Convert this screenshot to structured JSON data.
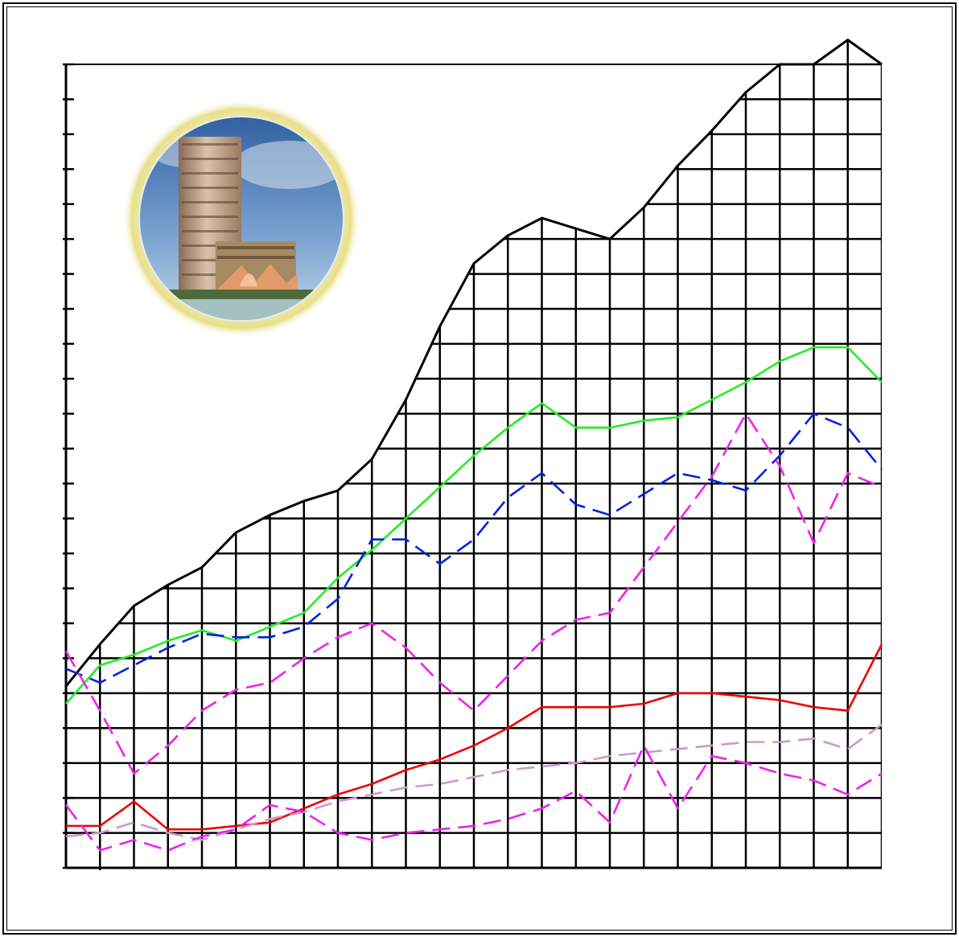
{
  "chart_data": {
    "type": "line",
    "title": "",
    "xlabel": "",
    "ylabel": "",
    "grid": true,
    "legend": "none",
    "x_range": [
      0,
      24
    ],
    "y_range": [
      0,
      23
    ],
    "decoration": "building-photo-medallion",
    "series": [
      {
        "color": "#000000",
        "style": "solid",
        "fill": "grid-hatched-area",
        "points": [
          [
            0,
            5.2
          ],
          [
            1,
            6.4
          ],
          [
            2,
            7.5
          ],
          [
            3,
            8.1
          ],
          [
            4,
            8.6
          ],
          [
            5,
            9.6
          ],
          [
            6,
            10.1
          ],
          [
            7,
            10.5
          ],
          [
            8,
            10.8
          ],
          [
            9,
            11.7
          ],
          [
            10,
            13.4
          ],
          [
            11,
            15.5
          ],
          [
            12,
            17.3
          ],
          [
            13,
            18.1
          ],
          [
            14,
            18.6
          ],
          [
            15,
            18.3
          ],
          [
            16,
            18.0
          ],
          [
            17,
            18.9
          ],
          [
            18,
            20.1
          ],
          [
            19,
            21.1
          ],
          [
            20,
            22.2
          ],
          [
            21,
            23.0
          ],
          [
            22,
            23.0
          ],
          [
            23,
            23.7
          ],
          [
            24,
            23.0
          ]
        ]
      },
      {
        "color": "#22ee22",
        "style": "solid",
        "points": [
          [
            0,
            4.7
          ],
          [
            1,
            5.8
          ],
          [
            2,
            6.1
          ],
          [
            3,
            6.5
          ],
          [
            4,
            6.8
          ],
          [
            5,
            6.5
          ],
          [
            6,
            6.9
          ],
          [
            7,
            7.3
          ],
          [
            8,
            8.3
          ],
          [
            9,
            9.1
          ],
          [
            10,
            10.0
          ],
          [
            11,
            10.9
          ],
          [
            12,
            11.8
          ],
          [
            13,
            12.6
          ],
          [
            14,
            13.3
          ],
          [
            15,
            12.6
          ],
          [
            16,
            12.6
          ],
          [
            17,
            12.8
          ],
          [
            18,
            12.9
          ],
          [
            19,
            13.4
          ],
          [
            20,
            13.9
          ],
          [
            21,
            14.5
          ],
          [
            22,
            14.9
          ],
          [
            23,
            14.9
          ],
          [
            24,
            13.9
          ]
        ]
      },
      {
        "color": "#0022dd",
        "style": "dashed",
        "points": [
          [
            0,
            5.7
          ],
          [
            1,
            5.3
          ],
          [
            2,
            5.8
          ],
          [
            3,
            6.3
          ],
          [
            4,
            6.7
          ],
          [
            5,
            6.6
          ],
          [
            6,
            6.6
          ],
          [
            7,
            6.9
          ],
          [
            8,
            7.7
          ],
          [
            9,
            9.4
          ],
          [
            10,
            9.4
          ],
          [
            11,
            8.7
          ],
          [
            12,
            9.4
          ],
          [
            13,
            10.6
          ],
          [
            14,
            11.3
          ],
          [
            15,
            10.4
          ],
          [
            16,
            10.1
          ],
          [
            17,
            10.7
          ],
          [
            18,
            11.3
          ],
          [
            19,
            11.1
          ],
          [
            20,
            10.8
          ],
          [
            21,
            11.8
          ],
          [
            22,
            13.0
          ],
          [
            23,
            12.6
          ],
          [
            24,
            11.4
          ]
        ]
      },
      {
        "color": "#ee22ee",
        "style": "dashed",
        "points": [
          [
            0,
            6.2
          ],
          [
            1,
            4.5
          ],
          [
            2,
            2.7
          ],
          [
            3,
            3.5
          ],
          [
            4,
            4.5
          ],
          [
            5,
            5.1
          ],
          [
            6,
            5.3
          ],
          [
            7,
            6.0
          ],
          [
            8,
            6.6
          ],
          [
            9,
            7.0
          ],
          [
            10,
            6.3
          ],
          [
            11,
            5.3
          ],
          [
            12,
            4.5
          ],
          [
            13,
            5.5
          ],
          [
            14,
            6.5
          ],
          [
            15,
            7.1
          ],
          [
            16,
            7.3
          ],
          [
            17,
            8.6
          ],
          [
            18,
            9.9
          ],
          [
            19,
            11.2
          ],
          [
            20,
            13.0
          ],
          [
            21,
            11.5
          ],
          [
            22,
            9.3
          ],
          [
            23,
            11.3
          ],
          [
            24,
            10.9
          ]
        ]
      },
      {
        "color": "#ee0000",
        "style": "solid",
        "points": [
          [
            0,
            1.2
          ],
          [
            1,
            1.2
          ],
          [
            2,
            1.9
          ],
          [
            3,
            1.1
          ],
          [
            4,
            1.1
          ],
          [
            5,
            1.2
          ],
          [
            6,
            1.3
          ],
          [
            7,
            1.7
          ],
          [
            8,
            2.1
          ],
          [
            9,
            2.4
          ],
          [
            10,
            2.8
          ],
          [
            11,
            3.1
          ],
          [
            12,
            3.5
          ],
          [
            13,
            4.0
          ],
          [
            14,
            4.6
          ],
          [
            15,
            4.6
          ],
          [
            16,
            4.6
          ],
          [
            17,
            4.7
          ],
          [
            18,
            5.0
          ],
          [
            19,
            5.0
          ],
          [
            20,
            4.9
          ],
          [
            21,
            4.8
          ],
          [
            22,
            4.6
          ],
          [
            23,
            4.5
          ],
          [
            24,
            6.4
          ]
        ]
      },
      {
        "color": "#cc99cc",
        "style": "dashed",
        "points": [
          [
            0,
            0.9
          ],
          [
            1,
            1.0
          ],
          [
            2,
            1.3
          ],
          [
            3,
            1.0
          ],
          [
            4,
            0.8
          ],
          [
            5,
            1.1
          ],
          [
            6,
            1.4
          ],
          [
            7,
            1.6
          ],
          [
            8,
            1.9
          ],
          [
            9,
            2.1
          ],
          [
            10,
            2.3
          ],
          [
            11,
            2.4
          ],
          [
            12,
            2.6
          ],
          [
            13,
            2.8
          ],
          [
            14,
            2.9
          ],
          [
            15,
            3.0
          ],
          [
            16,
            3.2
          ],
          [
            17,
            3.3
          ],
          [
            18,
            3.4
          ],
          [
            19,
            3.5
          ],
          [
            20,
            3.6
          ],
          [
            21,
            3.6
          ],
          [
            22,
            3.7
          ],
          [
            23,
            3.4
          ],
          [
            24,
            4.1
          ]
        ]
      },
      {
        "color": "#ee22ee",
        "style": "dashed",
        "points": [
          [
            0,
            1.8
          ],
          [
            1,
            0.5
          ],
          [
            2,
            0.8
          ],
          [
            3,
            0.5
          ],
          [
            4,
            0.9
          ],
          [
            5,
            1.1
          ],
          [
            6,
            1.8
          ],
          [
            7,
            1.6
          ],
          [
            8,
            1.0
          ],
          [
            9,
            0.8
          ],
          [
            10,
            1.0
          ],
          [
            11,
            1.1
          ],
          [
            12,
            1.2
          ],
          [
            13,
            1.4
          ],
          [
            14,
            1.7
          ],
          [
            15,
            2.2
          ],
          [
            16,
            1.3
          ],
          [
            17,
            3.5
          ],
          [
            18,
            1.7
          ],
          [
            19,
            3.2
          ],
          [
            20,
            3.0
          ],
          [
            21,
            2.7
          ],
          [
            22,
            2.5
          ],
          [
            23,
            2.1
          ],
          [
            24,
            2.7
          ]
        ]
      }
    ]
  }
}
